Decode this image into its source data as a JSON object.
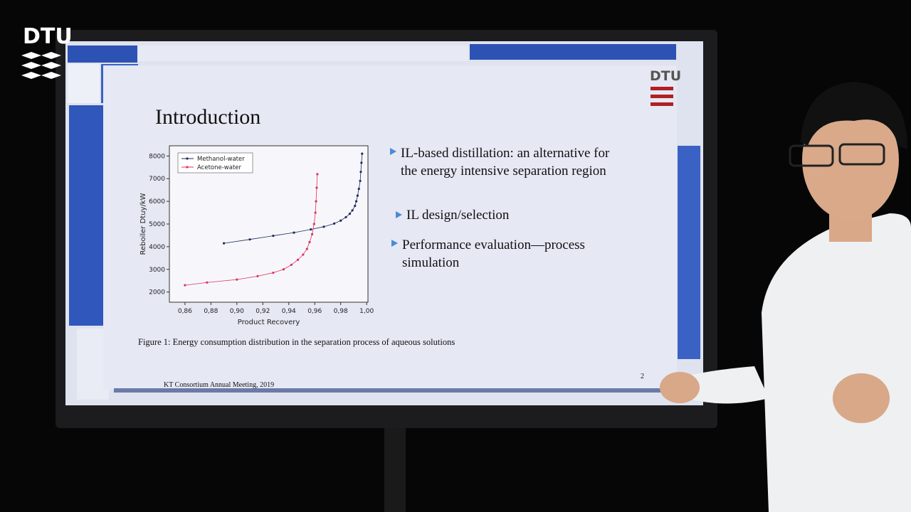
{
  "logo": "DTU",
  "slide": {
    "logo": "DTU",
    "title": "Introduction",
    "bullets": [
      "IL-based distillation: an alternative for the energy intensive separation region",
      "IL design/selection",
      "Performance evaluation—process simulation"
    ],
    "caption": "Figure 1: Energy consumption distribution in the separation process of aqueous solutions",
    "footer": "KT Consortium Annual Meeting, 2019",
    "page_number": "2"
  },
  "chart_data": {
    "type": "line",
    "x_label": "Product Recovery",
    "y_label": "Reboiler Dtuy/kW",
    "xlim": [
      0.848,
      1.001
    ],
    "ylim": [
      1550,
      8450
    ],
    "xticks": [
      {
        "value": 0.86,
        "label": "0,86"
      },
      {
        "value": 0.88,
        "label": "0,88"
      },
      {
        "value": 0.9,
        "label": "0,90"
      },
      {
        "value": 0.92,
        "label": "0,92"
      },
      {
        "value": 0.94,
        "label": "0,94"
      },
      {
        "value": 0.96,
        "label": "0,96"
      },
      {
        "value": 0.98,
        "label": "0,98"
      },
      {
        "value": 1.0,
        "label": "1,00"
      }
    ],
    "yticks": [
      2000,
      3000,
      4000,
      5000,
      6000,
      7000,
      8000
    ],
    "legend": "upper left",
    "series": [
      {
        "name": "Methanol-water",
        "color": "#1f2a5a",
        "x": [
          0.89,
          0.91,
          0.928,
          0.944,
          0.957,
          0.967,
          0.975,
          0.98,
          0.984,
          0.987,
          0.989,
          0.991,
          0.992,
          0.993,
          0.994,
          0.995,
          0.9955,
          0.996,
          0.9965
        ],
        "values": [
          4150,
          4320,
          4480,
          4620,
          4760,
          4880,
          5020,
          5150,
          5300,
          5450,
          5600,
          5800,
          6000,
          6250,
          6550,
          6900,
          7300,
          7700,
          8100
        ]
      },
      {
        "name": "Acetone-water",
        "color": "#e0325a",
        "x": [
          0.86,
          0.877,
          0.9,
          0.916,
          0.928,
          0.936,
          0.942,
          0.947,
          0.951,
          0.954,
          0.956,
          0.958,
          0.9595,
          0.9605,
          0.961,
          0.9615,
          0.962
        ],
        "values": [
          2300,
          2420,
          2550,
          2700,
          2850,
          3000,
          3200,
          3420,
          3650,
          3900,
          4200,
          4550,
          5000,
          5500,
          6000,
          6600,
          7200
        ]
      }
    ]
  }
}
